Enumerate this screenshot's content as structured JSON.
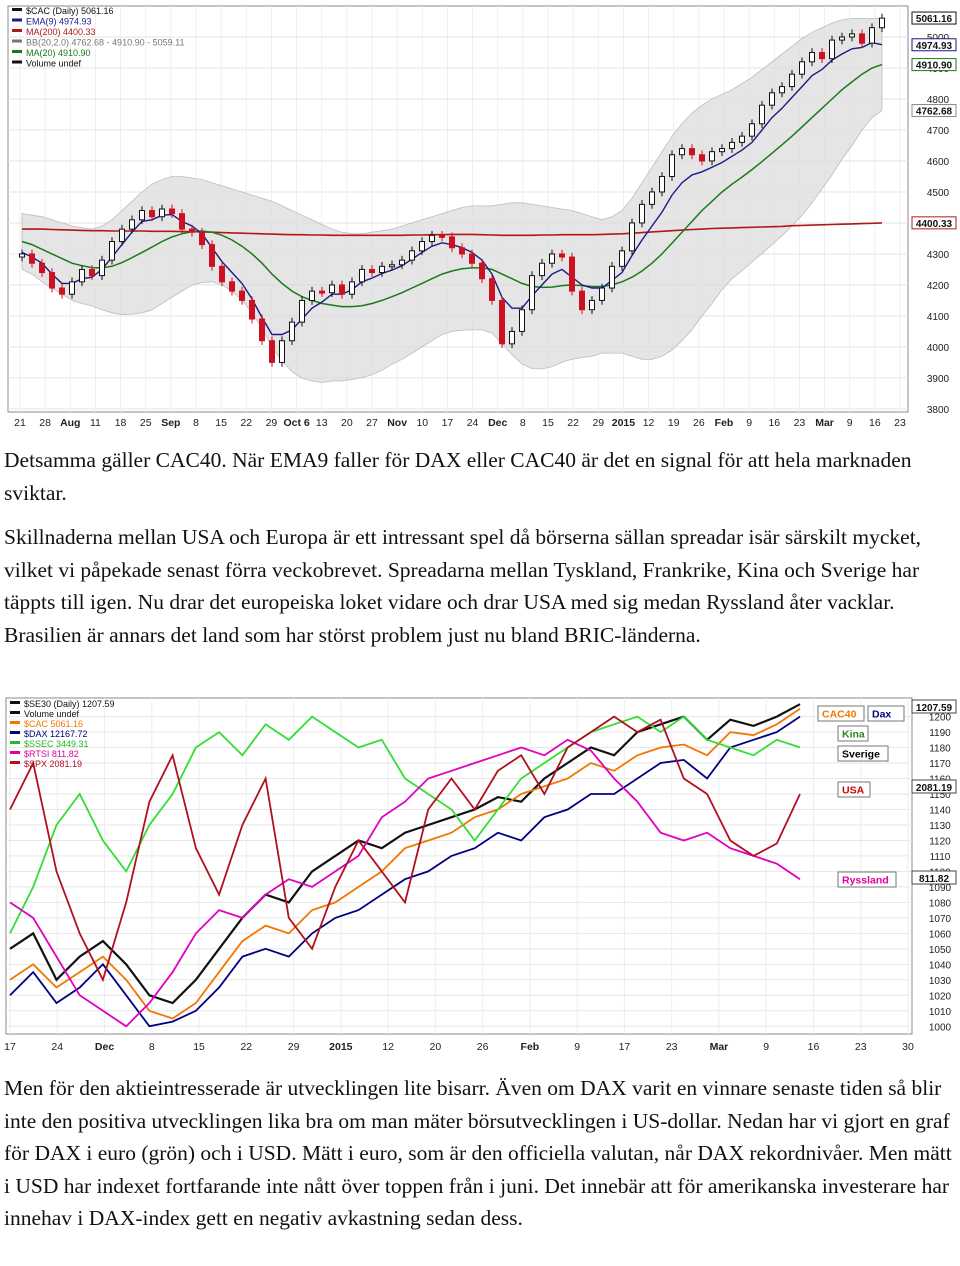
{
  "paragraphs": {
    "p1": "Detsamma gäller CAC40. När EMA9 faller för DAX eller CAC40 är det en signal för att hela marknaden sviktar.",
    "p2": "Skillnaderna mellan USA och Europa är ett intressant spel då börserna sällan spreadar isär särskilt mycket, vilket vi påpekade senast förra veckobrevet. Spreadarna mellan Tyskland, Frankrike, Kina och Sverige har täppts till igen. Nu drar det europeiska loket vidare och drar USA med sig medan Ryssland åter vacklar. Brasilien är annars det land som har störst problem just nu bland BRIC-länderna.",
    "p3": "Men för den aktieintresserade är utvecklingen lite bisarr. Även om DAX varit en vinnare senaste tiden så blir inte den positiva utvecklingen lika bra om man mäter börsutvecklingen i US-dollar. Nedan har vi gjort en graf för DAX i euro (grön) och i USD. Mätt i euro, som är den officiella valutan, når DAX rekordnivåer. Men mätt i USD har indexet fortfarande inte nått över toppen från i juni. Det innebär att för amerikanska investerare har innehav i DAX-index gett en negativ avkastning sedan dess."
  },
  "chart_data": [
    {
      "type": "candlestick",
      "legend": [
        "$CAC (Daily) 5061.16",
        "EMA(9) 4974.93",
        "MA(200) 4400.33",
        "BB(20,2.0) 4762.68 - 4910.90 - 5059.11",
        "MA(20) 4910.90",
        "Volume undef"
      ],
      "x_ticks": [
        "21",
        "28",
        "Aug",
        "11",
        "18",
        "25",
        "Sep",
        "8",
        "15",
        "22",
        "29",
        "Oct 6",
        "13",
        "20",
        "27",
        "Nov",
        "10",
        "17",
        "24",
        "Dec",
        "8",
        "15",
        "22",
        "29",
        "2015",
        "12",
        "19",
        "26",
        "Feb",
        "9",
        "16",
        "23",
        "Mar",
        "9",
        "16",
        "23"
      ],
      "y_ticks": [
        3800,
        3900,
        4000,
        4100,
        4200,
        4300,
        4400,
        4500,
        4600,
        4700,
        4800,
        4900,
        5000
      ],
      "ylim": [
        3790,
        5100
      ],
      "price_labels": [
        {
          "text": "5061.16",
          "value": 5061.16
        },
        {
          "text": "4974.93",
          "value": 4974.93
        },
        {
          "text": "4910.90",
          "value": 4910.9
        },
        {
          "text": "4762.68",
          "value": 4762.68
        },
        {
          "text": "4400.33",
          "value": 4400.33
        }
      ],
      "colors": {
        "up": "#111111",
        "down": "#cc1122",
        "ema9": "#1a1a8a",
        "ma200": "#b01818",
        "ma20": "#1a7a1a",
        "band": "#dcdcdc"
      },
      "series": [
        {
          "name": "$CAC",
          "values": [
            4300,
            4270,
            4240,
            4190,
            4170,
            4210,
            4250,
            4230,
            4280,
            4340,
            4380,
            4410,
            4440,
            4420,
            4445,
            4430,
            4380,
            4370,
            4330,
            4260,
            4210,
            4180,
            4150,
            4090,
            4020,
            3950,
            4020,
            4080,
            4150,
            4180,
            4175,
            4200,
            4170,
            4210,
            4250,
            4240,
            4260,
            4265,
            4280,
            4310,
            4340,
            4360,
            4355,
            4320,
            4300,
            4270,
            4220,
            4150,
            4010,
            4050,
            4120,
            4230,
            4270,
            4300,
            4290,
            4180,
            4120,
            4150,
            4190,
            4260,
            4310,
            4400,
            4460,
            4500,
            4550,
            4620,
            4640,
            4620,
            4600,
            4630,
            4640,
            4660,
            4680,
            4720,
            4780,
            4820,
            4840,
            4880,
            4920,
            4950,
            4930,
            4990,
            5000,
            5010,
            4980,
            5030,
            5061
          ]
        },
        {
          "name": "EMA(9)",
          "values": [
            4305,
            4290,
            4270,
            4235,
            4205,
            4205,
            4220,
            4225,
            4250,
            4290,
            4330,
            4370,
            4405,
            4410,
            4425,
            4427,
            4405,
            4390,
            4365,
            4320,
            4275,
            4240,
            4205,
            4155,
            4095,
            4040,
            4040,
            4055,
            4090,
            4125,
            4145,
            4170,
            4170,
            4185,
            4210,
            4222,
            4237,
            4248,
            4262,
            4283,
            4305,
            4325,
            4336,
            4330,
            4320,
            4305,
            4280,
            4235,
            4160,
            4125,
            4125,
            4165,
            4200,
            4235,
            4250,
            4225,
            4200,
            4190,
            4190,
            4215,
            4240,
            4295,
            4345,
            4390,
            4435,
            4490,
            4530,
            4555,
            4565,
            4580,
            4595,
            4615,
            4635,
            4660,
            4700,
            4740,
            4770,
            4805,
            4840,
            4875,
            4895,
            4925,
            4945,
            4962,
            4966,
            4982,
            4975
          ]
        },
        {
          "name": "MA(200)",
          "values": [
            4380,
            4380,
            4380,
            4379,
            4378,
            4377,
            4376,
            4375,
            4375,
            4374,
            4374,
            4374,
            4374,
            4373,
            4373,
            4373,
            4372,
            4372,
            4371,
            4370,
            4369,
            4368,
            4367,
            4366,
            4365,
            4364,
            4363,
            4362,
            4362,
            4361,
            4361,
            4360,
            4360,
            4360,
            4360,
            4360,
            4360,
            4360,
            4360,
            4361,
            4361,
            4362,
            4362,
            4363,
            4363,
            4363,
            4362,
            4361,
            4360,
            4360,
            4360,
            4360,
            4361,
            4361,
            4362,
            4362,
            4362,
            4362,
            4363,
            4364,
            4365,
            4367,
            4369,
            4371,
            4373,
            4375,
            4377,
            4379,
            4380,
            4382,
            4383,
            4384,
            4385,
            4386,
            4387,
            4388,
            4389,
            4391,
            4392,
            4393,
            4394,
            4395,
            4396,
            4397,
            4398,
            4399,
            4400
          ]
        },
        {
          "name": "MA(20)",
          "values": [
            4340,
            4330,
            4315,
            4300,
            4285,
            4270,
            4262,
            4256,
            4255,
            4260,
            4272,
            4288,
            4305,
            4322,
            4340,
            4355,
            4365,
            4372,
            4374,
            4370,
            4360,
            4345,
            4325,
            4300,
            4270,
            4235,
            4205,
            4180,
            4162,
            4150,
            4140,
            4135,
            4130,
            4130,
            4133,
            4140,
            4150,
            4162,
            4175,
            4190,
            4205,
            4220,
            4235,
            4245,
            4252,
            4255,
            4255,
            4250,
            4235,
            4220,
            4205,
            4195,
            4192,
            4193,
            4198,
            4200,
            4198,
            4195,
            4195,
            4200,
            4210,
            4225,
            4245,
            4270,
            4300,
            4335,
            4370,
            4405,
            4440,
            4470,
            4500,
            4525,
            4548,
            4572,
            4598,
            4625,
            4652,
            4680,
            4710,
            4740,
            4770,
            4800,
            4830,
            4855,
            4880,
            4900,
            4911
          ]
        },
        {
          "name": "BB upper",
          "values": [
            4430,
            4425,
            4420,
            4410,
            4400,
            4390,
            4385,
            4380,
            4390,
            4410,
            4440,
            4470,
            4500,
            4525,
            4540,
            4550,
            4550,
            4545,
            4540,
            4530,
            4520,
            4510,
            4500,
            4490,
            4480,
            4470,
            4455,
            4440,
            4425,
            4410,
            4395,
            4380,
            4370,
            4365,
            4365,
            4370,
            4375,
            4380,
            4390,
            4400,
            4410,
            4420,
            4430,
            4440,
            4450,
            4455,
            4455,
            4455,
            4460,
            4465,
            4465,
            4460,
            4455,
            4450,
            4445,
            4440,
            4430,
            4420,
            4410,
            4420,
            4440,
            4480,
            4530,
            4580,
            4630,
            4680,
            4720,
            4755,
            4780,
            4800,
            4815,
            4830,
            4850,
            4870,
            4895,
            4920,
            4945,
            4970,
            4995,
            5015,
            5030,
            5045,
            5055,
            5060,
            5060,
            5060,
            5059
          ]
        },
        {
          "name": "BB lower",
          "values": [
            4250,
            4235,
            4210,
            4190,
            4170,
            4150,
            4140,
            4132,
            4120,
            4110,
            4104,
            4106,
            4110,
            4119,
            4140,
            4160,
            4180,
            4199,
            4208,
            4210,
            4200,
            4180,
            4150,
            4110,
            4060,
            4000,
            3955,
            3920,
            3899,
            3890,
            3885,
            3890,
            3890,
            3895,
            3901,
            3910,
            3925,
            3944,
            3960,
            3980,
            4000,
            4020,
            4040,
            4050,
            4054,
            4055,
            4055,
            4045,
            4010,
            3975,
            3945,
            3930,
            3929,
            3936,
            3951,
            3960,
            3966,
            3970,
            3980,
            3980,
            3980,
            3970,
            3960,
            3960,
            3970,
            3990,
            4020,
            4055,
            4100,
            4140,
            4185,
            4220,
            4246,
            4274,
            4301,
            4330,
            4359,
            4390,
            4425,
            4465,
            4510,
            4555,
            4605,
            4650,
            4700,
            4740,
            4763
          ]
        }
      ]
    },
    {
      "type": "line",
      "legend": [
        "$SE30 (Daily) 1207.59",
        "Volume undef",
        "$CAC 5061.16",
        "$DAX 12167.72",
        "$SSEC 3449.31",
        "$RTSI 811.82",
        "$SPX 2081.19"
      ],
      "x_ticks": [
        "17",
        "24",
        "Dec",
        "8",
        "15",
        "22",
        "29",
        "2015",
        "12",
        "20",
        "26",
        "Feb",
        "9",
        "17",
        "23",
        "Mar",
        "9",
        "16",
        "23",
        "30"
      ],
      "y_ticks": [
        1000,
        1010,
        1020,
        1030,
        1040,
        1050,
        1060,
        1070,
        1080,
        1090,
        1100,
        1110,
        1120,
        1130,
        1140,
        1150,
        1160,
        1170,
        1180,
        1190,
        1200
      ],
      "ylim": [
        995,
        1212
      ],
      "price_labels": [
        {
          "text": "1207.59",
          "value": 1207.59
        },
        {
          "text": "2081.19",
          "value": 2081.19
        },
        {
          "text": "811.82",
          "value": 811.82
        }
      ],
      "series_labels": [
        {
          "text": "CAC40",
          "color": "#f07800"
        },
        {
          "text": "Dax",
          "color": "#000080"
        },
        {
          "text": "Kina",
          "color": "#2a8a1a"
        },
        {
          "text": "Sverige",
          "color": "#000000"
        },
        {
          "text": "USA",
          "color": "#cc0000"
        },
        {
          "text": "Ryssland",
          "color": "#e000a0"
        }
      ],
      "series": [
        {
          "name": "$SE30",
          "color": "#111111",
          "values": [
            1050,
            1060,
            1030,
            1045,
            1055,
            1040,
            1020,
            1015,
            1030,
            1050,
            1070,
            1085,
            1080,
            1100,
            1110,
            1120,
            1115,
            1125,
            1130,
            1135,
            1140,
            1148,
            1145,
            1160,
            1170,
            1180,
            1175,
            1190,
            1195,
            1200,
            1185,
            1198,
            1194,
            1200,
            1208
          ]
        },
        {
          "name": "$CAC",
          "color": "#f07800",
          "values": [
            1030,
            1040,
            1025,
            1035,
            1045,
            1030,
            1010,
            1005,
            1015,
            1035,
            1055,
            1065,
            1060,
            1075,
            1080,
            1090,
            1100,
            1115,
            1120,
            1125,
            1135,
            1140,
            1150,
            1155,
            1160,
            1170,
            1165,
            1175,
            1180,
            1182,
            1175,
            1190,
            1188,
            1195,
            1205
          ]
        },
        {
          "name": "$DAX",
          "color": "#000080",
          "values": [
            1020,
            1035,
            1015,
            1025,
            1040,
            1020,
            1000,
            1003,
            1010,
            1025,
            1045,
            1050,
            1045,
            1060,
            1070,
            1075,
            1085,
            1095,
            1100,
            1110,
            1115,
            1125,
            1120,
            1135,
            1140,
            1150,
            1150,
            1160,
            1170,
            1172,
            1160,
            1180,
            1185,
            1190,
            1200
          ]
        },
        {
          "name": "$SSEC",
          "color": "#33dd33",
          "values": [
            1060,
            1090,
            1130,
            1150,
            1120,
            1100,
            1130,
            1150,
            1180,
            1190,
            1175,
            1195,
            1185,
            1200,
            1190,
            1180,
            1185,
            1160,
            1150,
            1140,
            1120,
            1140,
            1160,
            1170,
            1180,
            1190,
            1195,
            1200,
            1190,
            1200,
            1185,
            1180,
            1175,
            1185,
            1180
          ]
        },
        {
          "name": "$RTSI",
          "color": "#e000c0",
          "values": [
            1080,
            1070,
            1045,
            1020,
            1010,
            1000,
            1015,
            1035,
            1060,
            1075,
            1070,
            1085,
            1095,
            1090,
            1100,
            1110,
            1135,
            1145,
            1160,
            1165,
            1170,
            1175,
            1180,
            1175,
            1185,
            1178,
            1160,
            1145,
            1125,
            1120,
            1125,
            1115,
            1110,
            1105,
            1095
          ]
        },
        {
          "name": "$SPX",
          "color": "#b01020",
          "values": [
            1140,
            1170,
            1100,
            1060,
            1030,
            1080,
            1145,
            1175,
            1115,
            1085,
            1130,
            1160,
            1070,
            1050,
            1090,
            1120,
            1100,
            1080,
            1140,
            1160,
            1140,
            1165,
            1175,
            1150,
            1180,
            1190,
            1200,
            1190,
            1198,
            1160,
            1150,
            1120,
            1110,
            1118,
            1150
          ]
        }
      ]
    }
  ]
}
